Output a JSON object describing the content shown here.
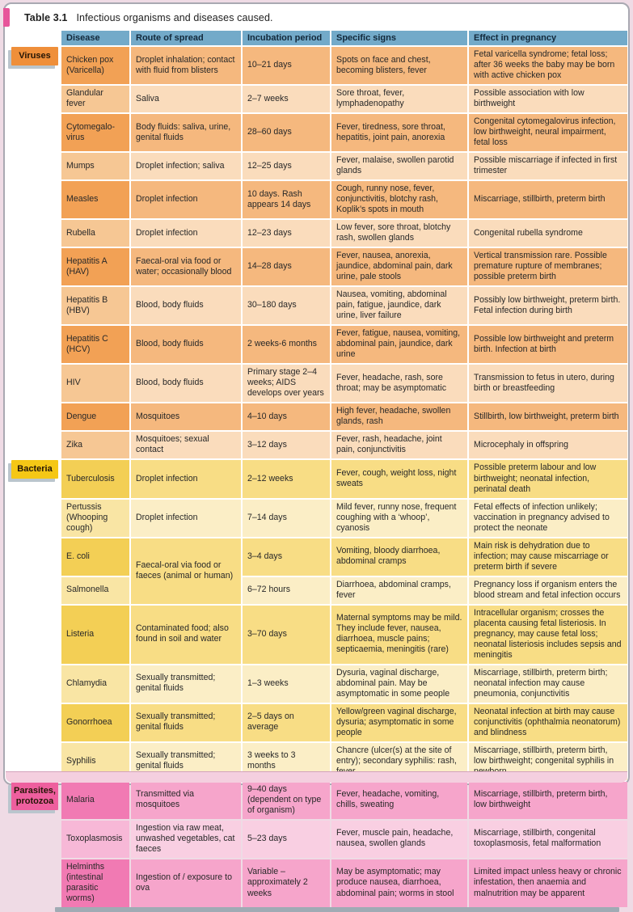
{
  "title": {
    "number": "Table 3.1",
    "caption": "Infectious organisms and diseases caused."
  },
  "colors": {
    "header_bg": "#73aac9",
    "viruses": {
      "label_bg": "#ef8f3a",
      "dark": {
        "disease": "#f2a155",
        "cell": "#f5b87e"
      },
      "light": {
        "disease": "#f6c794",
        "cell": "#fadcbc"
      }
    },
    "bacteria": {
      "label_bg": "#f5c716",
      "dark": {
        "disease": "#f3cf55",
        "cell": "#f8dd85"
      },
      "light": {
        "disease": "#f9e5a4",
        "cell": "#fbeec6"
      }
    },
    "parasites": {
      "label_bg": "#ee5f9e",
      "dark": {
        "disease": "#f17ab3",
        "cell": "#f6a5cb"
      },
      "light": {
        "disease": "#f7b8d7",
        "cell": "#f9cfe2"
      }
    }
  },
  "table": {
    "columns": [
      "Disease",
      "Route of spread",
      "Incubation period",
      "Specific signs",
      "Effect in pregnancy"
    ],
    "groups": [
      {
        "key": "viruses",
        "label": "Viruses",
        "rows": [
          {
            "disease": "Chicken pox (Varicella)",
            "route": "Droplet inhalation; contact with fluid from blisters",
            "incubation": "10–21 days",
            "signs": "Spots on face and chest, becoming blisters, fever",
            "effect": "Fetal varicella syndrome; fetal loss; after 36 weeks the baby may be born with active chicken pox"
          },
          {
            "disease": "Glandular fever",
            "route": "Saliva",
            "incubation": "2–7 weeks",
            "signs": "Sore throat, fever, lymphadenopathy",
            "effect": "Possible association with low birthweight"
          },
          {
            "disease": "Cytomegalo-virus",
            "route": "Body fluids: saliva, urine, genital fluids",
            "incubation": "28–60 days",
            "signs": "Fever, tiredness, sore throat, hepatitis, joint pain, anorexia",
            "effect": "Congenital cytomegalovirus infection, low birthweight, neural impairment, fetal loss"
          },
          {
            "disease": "Mumps",
            "route": "Droplet infection; saliva",
            "incubation": "12–25 days",
            "signs": "Fever, malaise, swollen parotid glands",
            "effect": "Possible miscarriage if infected in first trimester"
          },
          {
            "disease": "Measles",
            "route": "Droplet infection",
            "incubation": "10 days. Rash appears 14 days",
            "signs": "Cough, runny nose, fever, conjunctivitis, blotchy rash, Koplik’s spots in mouth",
            "effect": "Miscarriage, stillbirth, preterm birth"
          },
          {
            "disease": "Rubella",
            "route": "Droplet infection",
            "incubation": "12–23 days",
            "signs": "Low fever, sore throat, blotchy rash, swollen glands",
            "effect": "Congenital rubella syndrome"
          },
          {
            "disease": "Hepatitis A (HAV)",
            "route": "Faecal-oral via food or water; occasionally blood",
            "incubation": "14–28 days",
            "signs": "Fever, nausea, anorexia, jaundice, abdominal pain, dark urine, pale stools",
            "effect": "Vertical transmission rare. Possible premature rupture of membranes; possible preterm birth"
          },
          {
            "disease": "Hepatitis B (HBV)",
            "route": "Blood, body fluids",
            "incubation": "30–180 days",
            "signs": "Nausea, vomiting, abdominal pain, fatigue, jaundice, dark urine, liver failure",
            "effect": "Possibly low birthweight, preterm birth. Fetal infection during birth"
          },
          {
            "disease": "Hepatitis C (HCV)",
            "route": "Blood, body fluids",
            "incubation": "2 weeks-6 months",
            "signs": "Fever, fatigue, nausea, vomiting, abdominal pain, jaundice, dark urine",
            "effect": "Possible low birthweight and preterm birth. Infection at birth"
          },
          {
            "disease": "HIV",
            "route": "Blood, body fluids",
            "incubation": "Primary stage 2–4 weeks; AIDS develops over years",
            "signs": "Fever, headache, rash, sore throat; may be asymptomatic",
            "effect": "Transmission to fetus in utero, during birth or breastfeeding"
          },
          {
            "disease": "Dengue",
            "route": "Mosquitoes",
            "incubation": "4–10 days",
            "signs": "High fever, headache, swollen glands, rash",
            "effect": "Stillbirth, low birthweight, preterm birth"
          },
          {
            "disease": "Zika",
            "route": "Mosquitoes; sexual contact",
            "incubation": "3–12 days",
            "signs": "Fever, rash, headache, joint pain, conjunctivitis",
            "effect": "Microcephaly in offspring"
          }
        ]
      },
      {
        "key": "bacteria",
        "label": "Bacteria",
        "rows": [
          {
            "disease": "Tuberculosis",
            "route": "Droplet infection",
            "incubation": "2–12 weeks",
            "signs": "Fever, cough, weight loss, night sweats",
            "effect": "Possible preterm labour and low birthweight; neonatal infection, perinatal death"
          },
          {
            "disease": "Pertussis (Whooping cough)",
            "route": "Droplet infection",
            "incubation": "7–14 days",
            "signs": "Mild fever, runny nose, frequent coughing with a ‘whoop’, cyanosis",
            "effect": "Fetal effects of infection unlikely; vaccination in pregnancy advised to protect the neonate"
          },
          {
            "disease": "E. coli",
            "route": "Faecal-oral via food or faeces (animal or human)",
            "route_rowspan": 2,
            "incubation": "3–4 days",
            "signs": "Vomiting, bloody diarrhoea, abdominal cramps",
            "effect": "Main risk is dehydration due to infection; may cause miscarriage or preterm birth if severe"
          },
          {
            "disease": "Salmonella",
            "route": null,
            "incubation": "6–72 hours",
            "signs": "Diarrhoea, abdominal cramps, fever",
            "effect": "Pregnancy loss if organism enters the blood stream and fetal infection occurs"
          },
          {
            "disease": "Listeria",
            "route": "Contaminated food; also found in soil and water",
            "incubation": "3–70 days",
            "signs": "Maternal symptoms may be mild. They include fever, nausea, diarrhoea, muscle pains; septicaemia, meningitis (rare)",
            "effect": "Intracellular organism; crosses the placenta causing fetal listeriosis. In pregnancy, may cause fetal loss; neonatal listeriosis includes sepsis and meningitis"
          },
          {
            "disease": "Chlamydia",
            "route": "Sexually transmitted; genital fluids",
            "incubation": "1–3 weeks",
            "signs": "Dysuria, vaginal discharge, abdominal pain. May be asymptomatic in some people",
            "effect": "Miscarriage, stillbirth, preterm birth; neonatal infection may cause pneumonia, conjunctivitis"
          },
          {
            "disease": "Gonorrhoea",
            "route": "Sexually transmitted; genital fluids",
            "incubation": "2–5 days on average",
            "signs": "Yellow/green vaginal discharge, dysuria; asymptomatic in some people",
            "effect": "Neonatal infection at birth may cause conjunctivitis (ophthalmia neonatorum) and blindness"
          },
          {
            "disease": "Syphilis",
            "route": "Sexually transmitted; genital fluids",
            "incubation": "3 weeks to 3 months",
            "signs": "Chancre (ulcer(s) at the site of entry); secondary syphilis: rash, fever",
            "effect": "Miscarriage, stillbirth, preterm birth, low birthweight; congenital syphilis in newborn"
          }
        ]
      },
      {
        "key": "parasites",
        "label": "Parasites, protozoa",
        "rows": [
          {
            "disease": "Malaria",
            "route": "Transmitted via mosquitoes",
            "incubation": "9–40 days (dependent on type of organism)",
            "signs": "Fever, headache, vomiting, chills, sweating",
            "effect": "Miscarriage, stillbirth, preterm birth, low birthweight"
          },
          {
            "disease": "Toxoplasmosis",
            "route": "Ingestion via raw meat, unwashed vegetables, cat faeces",
            "incubation": "5–23 days",
            "signs": "Fever, muscle pain, headache, nausea, swollen glands",
            "effect": "Miscarriage, stillbirth, congenital toxoplasmosis, fetal malformation"
          },
          {
            "disease": "Helminths (intestinal parasitic worms)",
            "route": "Ingestion of / exposure to ova",
            "incubation": "Variable – approximately 2 weeks",
            "signs": "May be asymptomatic; may produce nausea, diarrhoea, abdominal pain; worms in stool",
            "effect": "Limited impact unless heavy or chronic infestation, then anaemia and malnutrition may be apparent"
          }
        ]
      }
    ]
  }
}
